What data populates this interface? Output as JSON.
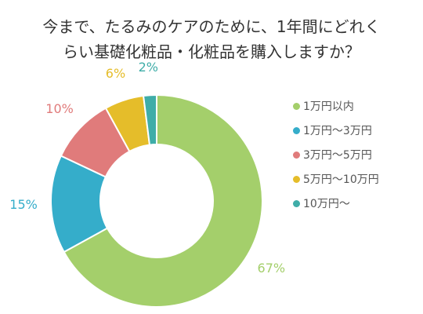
{
  "chart_data": {
    "type": "pie",
    "title": [
      "今まで、たるみのケアのために、1年間にどれく",
      "らい基礎化粧品・化粧品を購入しますか？"
    ],
    "categories": [
      "1万円以内",
      "1万円～3万円",
      "3万円～5万円",
      "5万円～10万円",
      "10万円～"
    ],
    "values": [
      67,
      15,
      10,
      6,
      2
    ],
    "data_labels": [
      "67%",
      "15%",
      "10%",
      "6%",
      "2%"
    ],
    "colors": [
      "#a4cf6b",
      "#35adca",
      "#e07b7b",
      "#e5bd2a",
      "#3fada8"
    ],
    "legend_position": "right"
  }
}
